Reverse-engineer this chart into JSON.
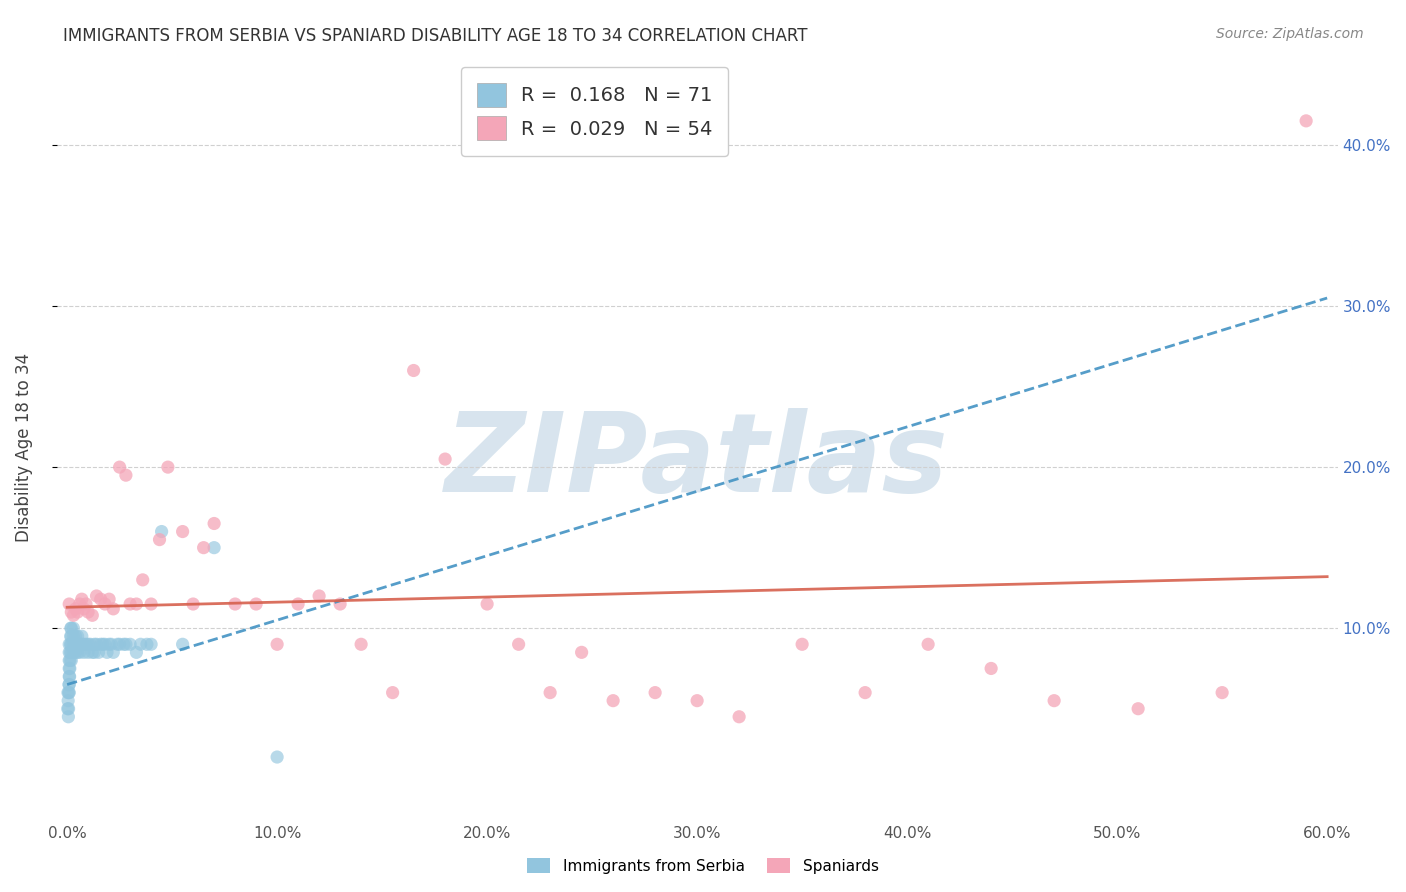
{
  "title": "IMMIGRANTS FROM SERBIA VS SPANIARD DISABILITY AGE 18 TO 34 CORRELATION CHART",
  "source": "Source: ZipAtlas.com",
  "xlabel": "",
  "ylabel": "Disability Age 18 to 34",
  "xlim": [
    -0.005,
    0.605
  ],
  "ylim": [
    -0.02,
    0.445
  ],
  "xticks": [
    0.0,
    0.1,
    0.2,
    0.3,
    0.4,
    0.5,
    0.6
  ],
  "yticks": [
    0.1,
    0.2,
    0.3,
    0.4
  ],
  "xtick_labels": [
    "0.0%",
    "10.0%",
    "20.0%",
    "30.0%",
    "40.0%",
    "50.0%",
    "60.0%"
  ],
  "ytick_labels_right": [
    "10.0%",
    "20.0%",
    "30.0%",
    "40.0%"
  ],
  "legend_label1": "Immigrants from Serbia",
  "legend_label2": "Spaniards",
  "R1": 0.168,
  "N1": 71,
  "R2": 0.029,
  "N2": 54,
  "color_blue": "#92c5de",
  "color_pink": "#f4a6b8",
  "color_blue_line": "#4393c3",
  "color_pink_line": "#d6604d",
  "background_color": "#ffffff",
  "grid_color": "#d0d0d0",
  "watermark": "ZIPatlas",
  "serbia_x": [
    0.0003,
    0.0004,
    0.0005,
    0.0006,
    0.0007,
    0.0008,
    0.0009,
    0.001,
    0.001,
    0.001,
    0.001,
    0.001,
    0.001,
    0.001,
    0.0012,
    0.0013,
    0.0014,
    0.0015,
    0.0016,
    0.0017,
    0.0018,
    0.002,
    0.002,
    0.002,
    0.002,
    0.002,
    0.003,
    0.003,
    0.003,
    0.003,
    0.004,
    0.004,
    0.004,
    0.005,
    0.005,
    0.005,
    0.006,
    0.006,
    0.007,
    0.007,
    0.008,
    0.008,
    0.009,
    0.01,
    0.01,
    0.011,
    0.012,
    0.013,
    0.013,
    0.014,
    0.015,
    0.016,
    0.017,
    0.018,
    0.019,
    0.02,
    0.021,
    0.022,
    0.024,
    0.025,
    0.027,
    0.028,
    0.03,
    0.033,
    0.035,
    0.038,
    0.04,
    0.045,
    0.055,
    0.07,
    0.1
  ],
  "serbia_y": [
    0.05,
    0.06,
    0.055,
    0.045,
    0.05,
    0.06,
    0.065,
    0.06,
    0.065,
    0.07,
    0.075,
    0.08,
    0.085,
    0.09,
    0.07,
    0.075,
    0.08,
    0.085,
    0.09,
    0.095,
    0.1,
    0.09,
    0.095,
    0.1,
    0.085,
    0.08,
    0.085,
    0.09,
    0.095,
    0.1,
    0.085,
    0.09,
    0.095,
    0.085,
    0.09,
    0.095,
    0.085,
    0.09,
    0.09,
    0.095,
    0.085,
    0.09,
    0.09,
    0.085,
    0.09,
    0.09,
    0.085,
    0.085,
    0.09,
    0.09,
    0.085,
    0.09,
    0.09,
    0.09,
    0.085,
    0.09,
    0.09,
    0.085,
    0.09,
    0.09,
    0.09,
    0.09,
    0.09,
    0.085,
    0.09,
    0.09,
    0.09,
    0.16,
    0.09,
    0.15,
    0.02
  ],
  "spaniard_x": [
    0.001,
    0.002,
    0.003,
    0.004,
    0.005,
    0.006,
    0.007,
    0.008,
    0.009,
    0.01,
    0.012,
    0.014,
    0.016,
    0.018,
    0.02,
    0.022,
    0.025,
    0.028,
    0.03,
    0.033,
    0.036,
    0.04,
    0.044,
    0.048,
    0.055,
    0.06,
    0.065,
    0.07,
    0.08,
    0.09,
    0.1,
    0.11,
    0.12,
    0.13,
    0.14,
    0.155,
    0.165,
    0.18,
    0.2,
    0.215,
    0.23,
    0.245,
    0.26,
    0.28,
    0.3,
    0.32,
    0.35,
    0.38,
    0.41,
    0.44,
    0.47,
    0.51,
    0.55,
    0.59
  ],
  "spaniard_y": [
    0.115,
    0.11,
    0.108,
    0.112,
    0.11,
    0.115,
    0.118,
    0.112,
    0.115,
    0.11,
    0.108,
    0.12,
    0.118,
    0.115,
    0.118,
    0.112,
    0.2,
    0.195,
    0.115,
    0.115,
    0.13,
    0.115,
    0.155,
    0.2,
    0.16,
    0.115,
    0.15,
    0.165,
    0.115,
    0.115,
    0.09,
    0.115,
    0.12,
    0.115,
    0.09,
    0.06,
    0.26,
    0.205,
    0.115,
    0.09,
    0.06,
    0.085,
    0.055,
    0.06,
    0.055,
    0.045,
    0.09,
    0.06,
    0.09,
    0.075,
    0.055,
    0.05,
    0.06,
    0.415
  ]
}
